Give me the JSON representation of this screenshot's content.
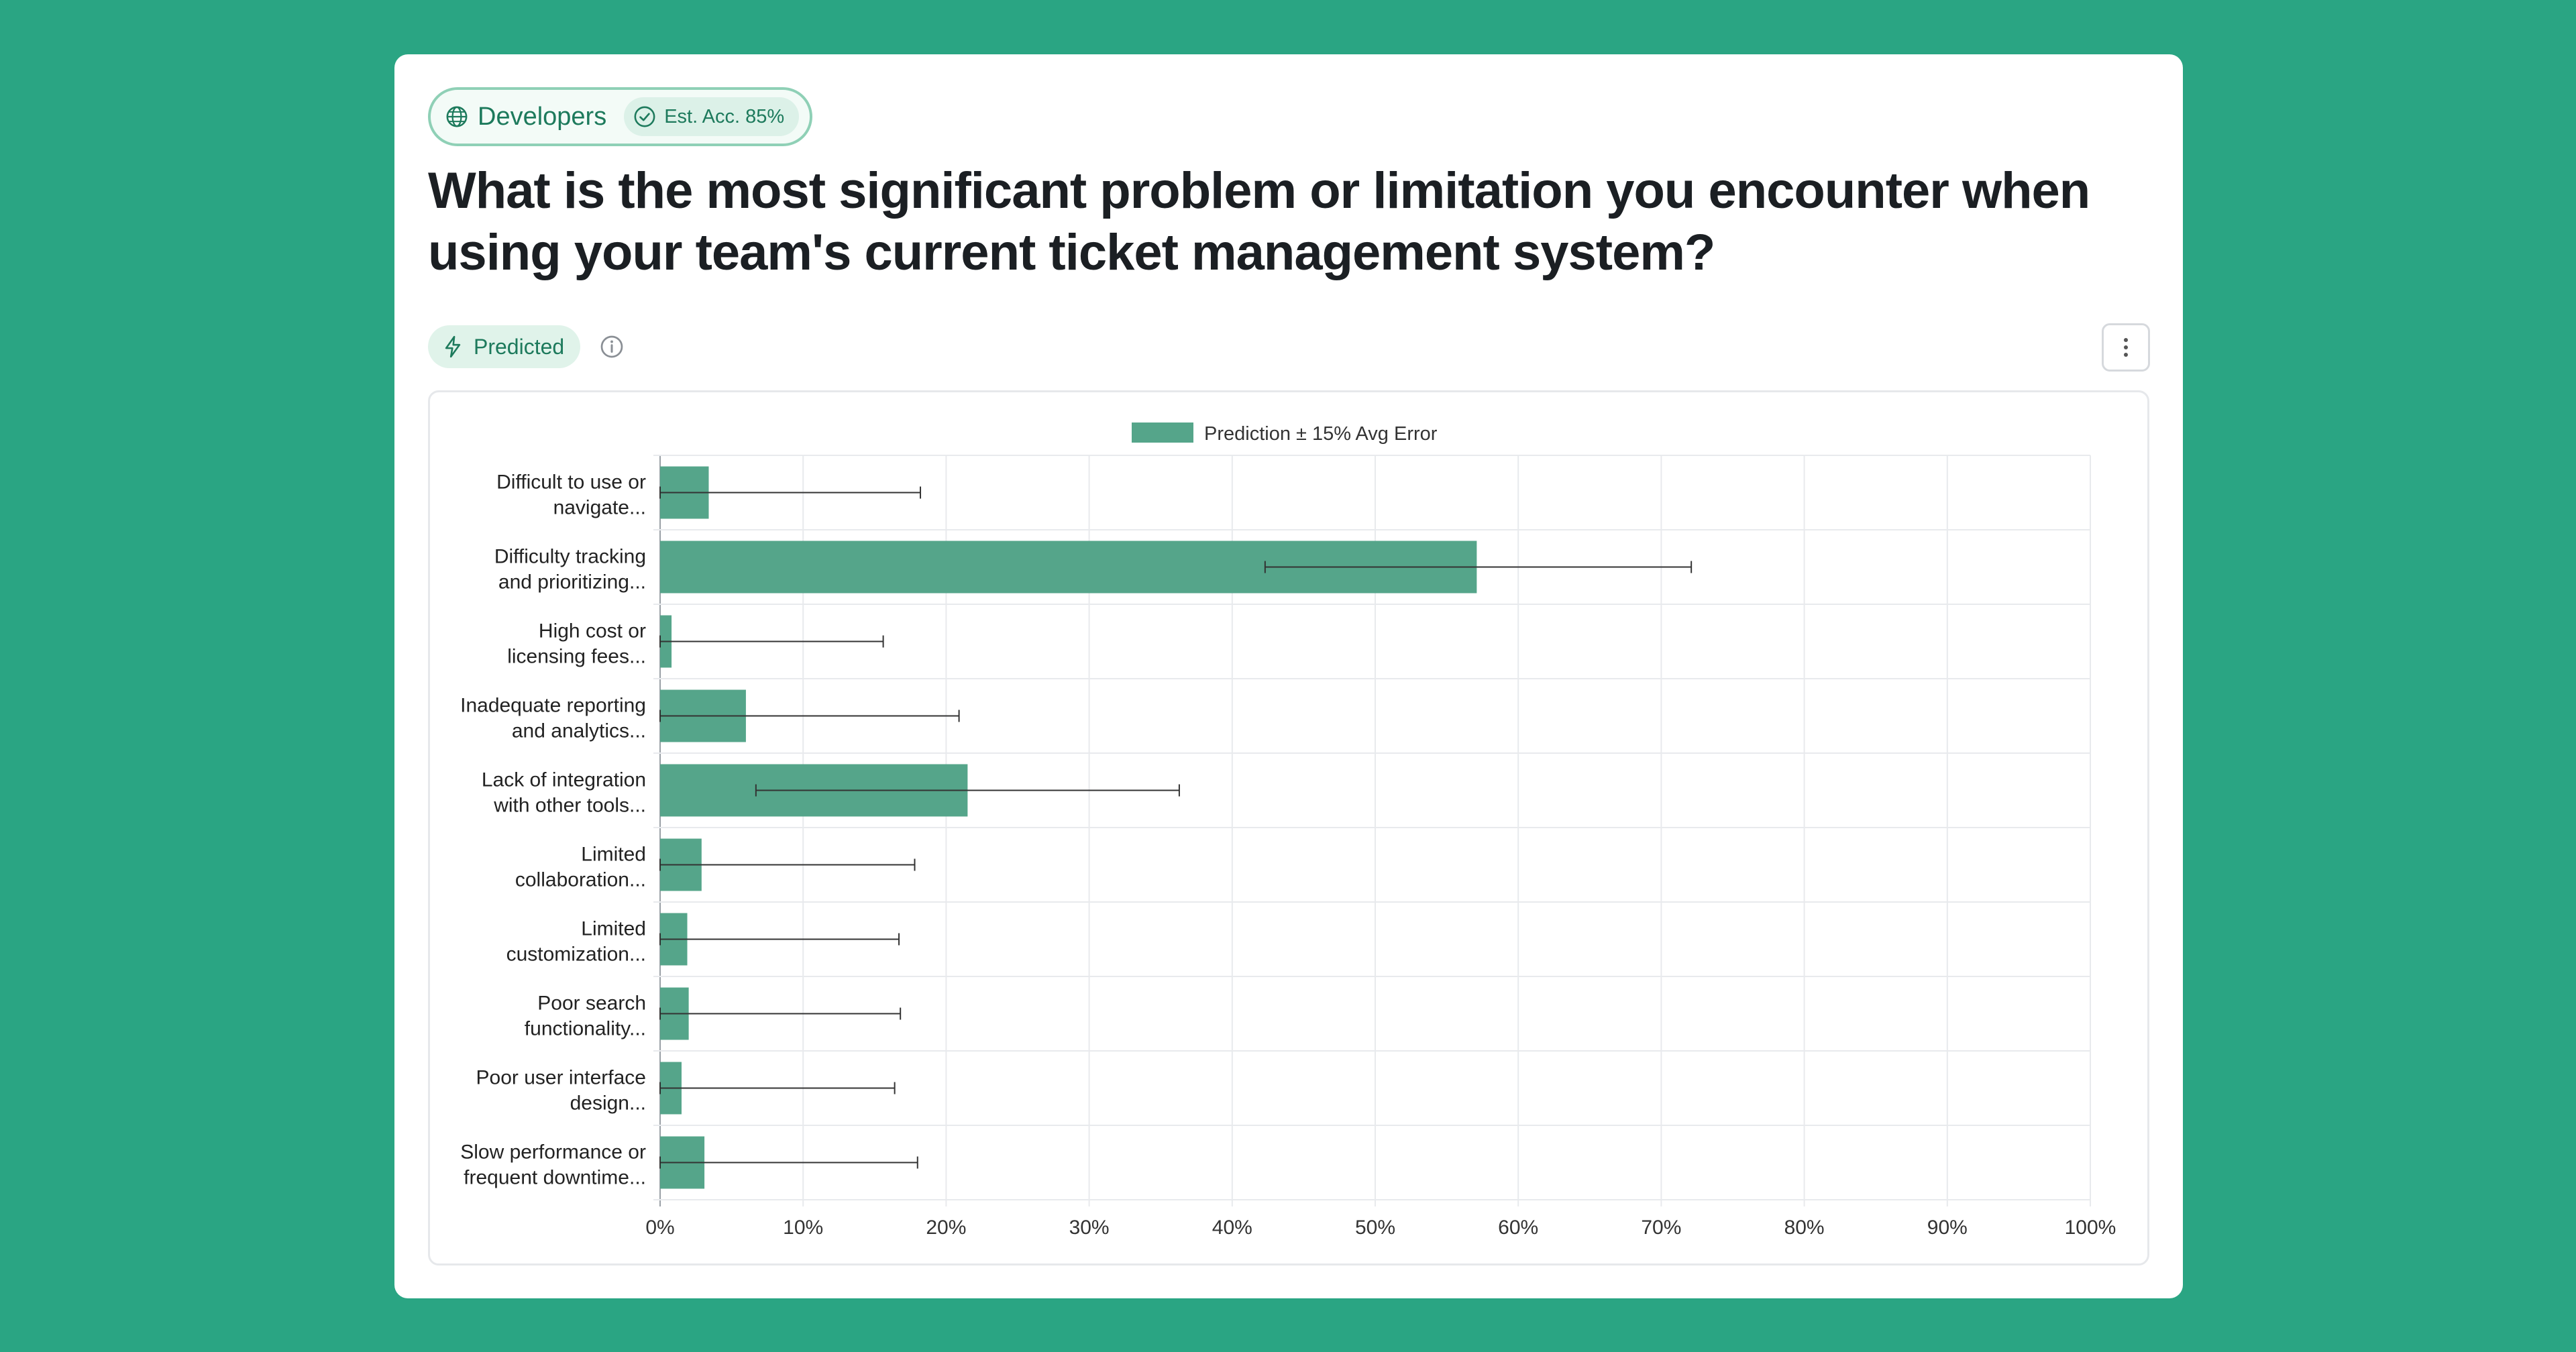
{
  "header": {
    "segment": "Developers",
    "accuracy": "Est. Acc. 85%",
    "question": "What is the most significant problem or limitation you encounter when using your team's current ticket management system?",
    "status": "Predicted"
  },
  "colors": {
    "background": "#2aa583",
    "bar": "#55a58a",
    "accent": "#1d7a5c"
  },
  "icons": {
    "segment": "globe-icon",
    "accuracy": "check-circle-icon",
    "status": "bolt-icon",
    "info": "info-icon",
    "menu": "more-vertical-icon"
  },
  "chart_data": {
    "type": "bar",
    "orientation": "horizontal",
    "legend": {
      "label": "Prediction ± 15% Avg Error",
      "position": "top-center"
    },
    "categories": [
      "Difficult to use or navigate...",
      "Difficulty tracking and prioritizing...",
      "High cost or licensing fees...",
      "Inadequate reporting and analytics...",
      "Lack of integration with other tools...",
      "Limited collaboration...",
      "Limited customization...",
      "Poor search functionality...",
      "Poor user interface design...",
      "Slow performance or frequent downtime..."
    ],
    "category_lines": [
      [
        "Difficult to use or",
        "navigate..."
      ],
      [
        "Difficulty tracking",
        "and prioritizing..."
      ],
      [
        "High cost or",
        "licensing fees..."
      ],
      [
        "Inadequate reporting",
        "and analytics..."
      ],
      [
        "Lack of integration",
        "with other tools..."
      ],
      [
        "Limited",
        "collaboration..."
      ],
      [
        "Limited",
        "customization..."
      ],
      [
        "Poor search",
        "functionality..."
      ],
      [
        "Poor user interface",
        "design..."
      ],
      [
        "Slow performance or",
        "frequent downtime..."
      ]
    ],
    "values": [
      3.4,
      57.1,
      0.8,
      6.0,
      21.5,
      2.9,
      1.9,
      2.0,
      1.5,
      3.1
    ],
    "error_low": [
      0,
      42.3,
      0,
      0,
      6.7,
      0,
      0,
      0,
      0,
      0
    ],
    "error_high": [
      18.2,
      72.1,
      15.6,
      20.9,
      36.3,
      17.8,
      16.7,
      16.8,
      16.4,
      18.0
    ],
    "xlim": [
      0,
      100
    ],
    "xticks": [
      "0%",
      "10%",
      "20%",
      "30%",
      "40%",
      "50%",
      "60%",
      "70%",
      "80%",
      "90%",
      "100%"
    ],
    "grid": true
  }
}
